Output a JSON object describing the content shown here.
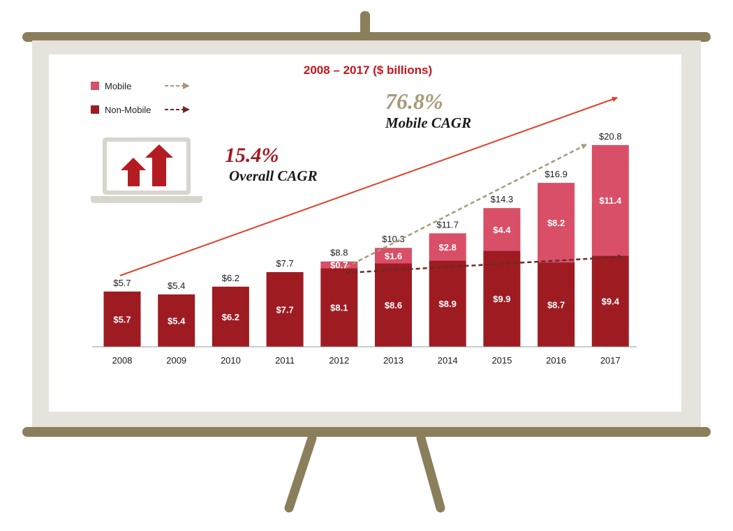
{
  "chart_data": {
    "type": "bar",
    "stacked": true,
    "title": "2008 – 2017 ($ billions)",
    "categories": [
      "2008",
      "2009",
      "2010",
      "2011",
      "2012",
      "2013",
      "2014",
      "2015",
      "2016",
      "2017"
    ],
    "series": [
      {
        "name": "Non-Mobile",
        "color": "#9e1b22",
        "values": [
          5.7,
          5.4,
          6.2,
          7.7,
          8.1,
          8.6,
          8.9,
          9.9,
          8.7,
          9.4
        ],
        "labels": [
          "$5.7",
          "$5.4",
          "$6.2",
          "$7.7",
          "$8.1",
          "$8.6",
          "$8.9",
          "$9.9",
          "$8.7",
          "$9.4"
        ]
      },
      {
        "name": "Mobile",
        "color": "#d94f67",
        "values": [
          0,
          0,
          0,
          0,
          0.7,
          1.6,
          2.8,
          4.4,
          8.2,
          11.4
        ],
        "labels": [
          "",
          "",
          "",
          "",
          "$0.7",
          "$1.6",
          "$2.8",
          "$4.4",
          "$8.2",
          "$11.4"
        ]
      }
    ],
    "totals": [
      5.7,
      5.4,
      6.2,
      7.7,
      8.8,
      10.3,
      11.7,
      14.3,
      16.9,
      20.8
    ],
    "total_labels": [
      "$5.7",
      "$5.4",
      "$6.2",
      "$7.7",
      "$8.8",
      "$10.3",
      "$11.7",
      "$14.3",
      "$16.9",
      "$20.8"
    ],
    "ylim": [
      0,
      22
    ],
    "grid": false,
    "legend_position": "top-left",
    "annotations": {
      "overall_cagr_value": "15.4%",
      "overall_cagr_label": "Overall CAGR",
      "mobile_cagr_value": "76.8%",
      "mobile_cagr_label": "Mobile CAGR"
    },
    "colors": {
      "title": "#c4161c",
      "overall_arrow": "#e0402a",
      "mobile_arrow": "#a89a78",
      "nonmobile_arrow": "#6b2a24",
      "overall_text": "#a3191f",
      "mobile_text": "#a89a78",
      "board_frame": "#e6e3dc",
      "board_stand": "#8b7e5b",
      "laptop": "#d8d5cd"
    },
    "icons": [
      "laptop-icon",
      "up-arrows-icon"
    ]
  }
}
